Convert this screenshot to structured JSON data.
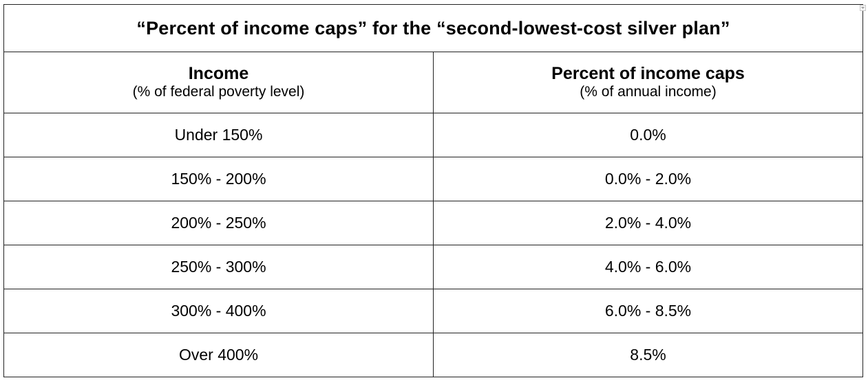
{
  "table": {
    "title": "“Percent of income caps” for the “second-lowest-cost silver plan”",
    "headers": [
      {
        "main": "Income",
        "sub": "(% of federal poverty level)"
      },
      {
        "main": "Percent of income caps",
        "sub": "(% of annual income)"
      }
    ],
    "rows": [
      {
        "income": "Under 150%",
        "cap": "0.0%"
      },
      {
        "income": "150% - 200%",
        "cap": "0.0% - 2.0%"
      },
      {
        "income": "200% - 250%",
        "cap": "2.0% - 4.0%"
      },
      {
        "income": "250% - 300%",
        "cap": "4.0% - 6.0%"
      },
      {
        "income": "300% - 400%",
        "cap": "6.0% - 8.5%"
      },
      {
        "income": "Over 400%",
        "cap": "8.5%"
      }
    ]
  },
  "corner_control": {
    "icon": "dropdown-arrow-icon"
  }
}
